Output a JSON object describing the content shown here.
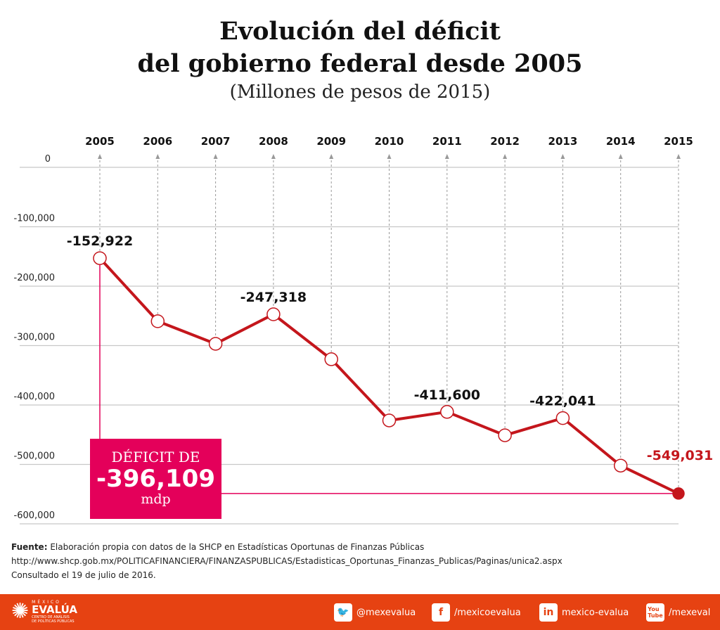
{
  "title_line1": "Evolución del déficit",
  "title_line2": "del gobierno federal desde 2005",
  "subtitle": "(Millones de pesos de 2015)",
  "chart_data": {
    "type": "line",
    "x": [
      "2005",
      "2006",
      "2007",
      "2008",
      "2009",
      "2010",
      "2011",
      "2012",
      "2013",
      "2014",
      "2015"
    ],
    "values": [
      -152922,
      -259000,
      -297000,
      -247318,
      -323000,
      -426000,
      -411600,
      -451000,
      -422041,
      -502000,
      -549031
    ],
    "data_labels": {
      "0": "-152,922",
      "3": "-247,318",
      "6": "-411,600",
      "8": "-422,041",
      "10": "-549,031"
    },
    "yticks": [
      0,
      -100000,
      -200000,
      -300000,
      -400000,
      -500000,
      -600000
    ],
    "ytick_labels": [
      "0",
      "-100,000",
      "-200,000",
      "-300,000",
      "-400,000",
      "-500,000",
      "-600,000"
    ],
    "ylim": [
      -600000,
      0
    ],
    "grid": "horizontal",
    "line_color": "#c4161c",
    "highlight_color": "#e4005a"
  },
  "callout": {
    "line1": "DÉFICIT DE",
    "value": "-396,109",
    "unit": "mdp"
  },
  "source": {
    "label": "Fuente:",
    "text": " Elaboración propia con datos de la SHCP en Estadísticas Oportunas de Finanzas Públicas",
    "url": "http://www.shcp.gob.mx/POLITICAFINANCIERA/FINANZASPUBLICAS/Estadisticas_Oportunas_Finanzas_Publicas/Paginas/unica2.aspx",
    "consulted": "Consultado el 19 de julio de 2016."
  },
  "footer": {
    "logo_top": "MÉXICO",
    "logo_main": "EVALÚA",
    "logo_sub1": "CENTRO DE ANÁLISIS",
    "logo_sub2": "DE POLÍTICAS PÚBLICAS",
    "social": [
      {
        "icon": "twitter-icon",
        "label": "@mexevalua"
      },
      {
        "icon": "facebook-icon",
        "label": "/mexicoevalua"
      },
      {
        "icon": "linkedin-icon",
        "label": "mexico-evalua"
      },
      {
        "icon": "youtube-icon",
        "label": "/mexeval"
      }
    ],
    "color": "#e64212"
  }
}
